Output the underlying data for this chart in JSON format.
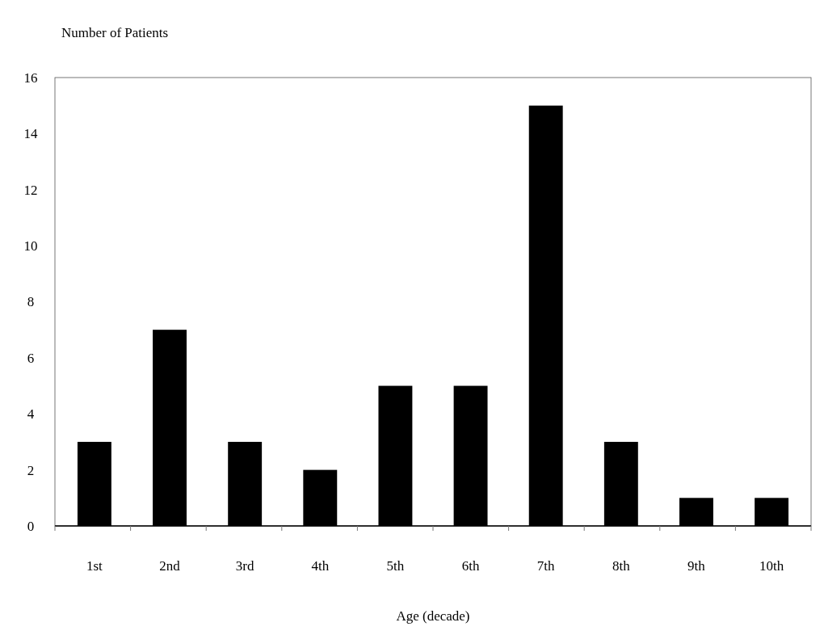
{
  "chart_data": {
    "type": "bar",
    "ylabel": "Number of Patients",
    "xlabel": "Age (decade)",
    "categories": [
      "1st",
      "2nd",
      "3rd",
      "4th",
      "5th",
      "6th",
      "7th",
      "8th",
      "9th",
      "10th"
    ],
    "values": [
      3,
      7,
      3,
      2,
      5,
      5,
      15,
      3,
      1,
      1
    ],
    "color": "#000000",
    "ylim": [
      0,
      16
    ],
    "yticks": [
      0,
      2,
      4,
      6,
      8,
      10,
      12,
      14,
      16
    ],
    "grid": false
  }
}
